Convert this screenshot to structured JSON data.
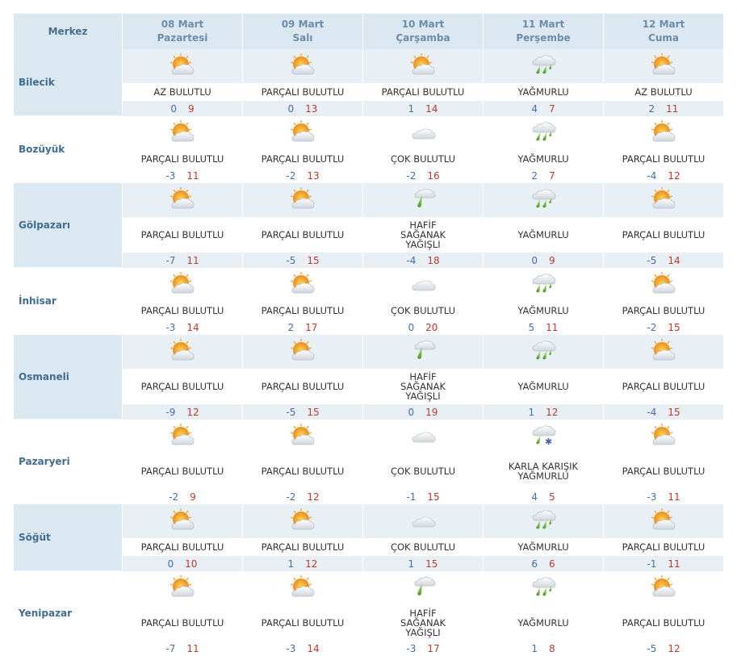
{
  "header": {
    "corner": "Merkez",
    "days": [
      {
        "date": "08 Mart",
        "weekday": "Pazartesi"
      },
      {
        "date": "09 Mart",
        "weekday": "Salı"
      },
      {
        "date": "10 Mart",
        "weekday": "Çarşamba"
      },
      {
        "date": "11 Mart",
        "weekday": "Perşembe"
      },
      {
        "date": "12 Mart",
        "weekday": "Cuma"
      }
    ]
  },
  "cities": [
    {
      "name": "Bilecik",
      "days": [
        {
          "icon": "sun-cloud-icon",
          "desc": "AZ BULUTLU",
          "min": "0",
          "max": "9"
        },
        {
          "icon": "sun-cloud-icon",
          "desc": "PARÇALI BULUTLU",
          "min": "0",
          "max": "13"
        },
        {
          "icon": "sun-cloud-icon",
          "desc": "PARÇALI BULUTLU",
          "min": "1",
          "max": "14"
        },
        {
          "icon": "rain-icon",
          "desc": "YAĞMURLU",
          "min": "4",
          "max": "7"
        },
        {
          "icon": "sun-cloud-icon",
          "desc": "AZ BULUTLU",
          "min": "2",
          "max": "11"
        }
      ]
    },
    {
      "name": "Bozüyük",
      "days": [
        {
          "icon": "sun-cloud-icon",
          "desc": "PARÇALI BULUTLU",
          "min": "-3",
          "max": "11"
        },
        {
          "icon": "sun-cloud-icon",
          "desc": "PARÇALI BULUTLU",
          "min": "-2",
          "max": "13"
        },
        {
          "icon": "cloud-icon",
          "desc": "ÇOK BULUTLU",
          "min": "-2",
          "max": "16"
        },
        {
          "icon": "rain-icon",
          "desc": "YAĞMURLU",
          "min": "2",
          "max": "7"
        },
        {
          "icon": "sun-cloud-icon",
          "desc": "PARÇALI BULUTLU",
          "min": "-4",
          "max": "12"
        }
      ]
    },
    {
      "name": "Gölpazarı",
      "days": [
        {
          "icon": "sun-cloud-icon",
          "desc": "PARÇALI BULUTLU",
          "min": "-7",
          "max": "11"
        },
        {
          "icon": "sun-cloud-icon",
          "desc": "PARÇALI BULUTLU",
          "min": "-5",
          "max": "15"
        },
        {
          "icon": "shower-icon",
          "desc": "HAFİF SAĞANAK YAĞIŞLI",
          "min": "-4",
          "max": "18"
        },
        {
          "icon": "rain-icon",
          "desc": "YAĞMURLU",
          "min": "0",
          "max": "9"
        },
        {
          "icon": "sun-cloud-icon",
          "desc": "PARÇALI BULUTLU",
          "min": "-5",
          "max": "14"
        }
      ]
    },
    {
      "name": "İnhisar",
      "days": [
        {
          "icon": "sun-cloud-icon",
          "desc": "PARÇALI BULUTLU",
          "min": "-3",
          "max": "14"
        },
        {
          "icon": "sun-cloud-icon",
          "desc": "PARÇALI BULUTLU",
          "min": "2",
          "max": "17"
        },
        {
          "icon": "cloud-icon",
          "desc": "ÇOK BULUTLU",
          "min": "0",
          "max": "20"
        },
        {
          "icon": "rain-icon",
          "desc": "YAĞMURLU",
          "min": "5",
          "max": "11"
        },
        {
          "icon": "sun-cloud-icon",
          "desc": "PARÇALI BULUTLU",
          "min": "-2",
          "max": "15"
        }
      ]
    },
    {
      "name": "Osmaneli",
      "days": [
        {
          "icon": "sun-cloud-icon",
          "desc": "PARÇALI BULUTLU",
          "min": "-9",
          "max": "12"
        },
        {
          "icon": "sun-cloud-icon",
          "desc": "PARÇALI BULUTLU",
          "min": "-5",
          "max": "15"
        },
        {
          "icon": "shower-icon",
          "desc": "HAFİF SAĞANAK YAĞIŞLI",
          "min": "0",
          "max": "19"
        },
        {
          "icon": "rain-icon",
          "desc": "YAĞMURLU",
          "min": "1",
          "max": "12"
        },
        {
          "icon": "sun-cloud-icon",
          "desc": "PARÇALI BULUTLU",
          "min": "-4",
          "max": "15"
        }
      ]
    },
    {
      "name": "Pazaryeri",
      "days": [
        {
          "icon": "sun-cloud-icon",
          "desc": "PARÇALI BULUTLU",
          "min": "-2",
          "max": "9"
        },
        {
          "icon": "sun-cloud-icon",
          "desc": "PARÇALI BULUTLU",
          "min": "-2",
          "max": "12"
        },
        {
          "icon": "cloud-icon",
          "desc": "ÇOK BULUTLU",
          "min": "-1",
          "max": "15"
        },
        {
          "icon": "sleet-icon",
          "desc": "KARLA KARIŞIK YAĞMURLU",
          "min": "4",
          "max": "5"
        },
        {
          "icon": "sun-cloud-icon",
          "desc": "PARÇALI BULUTLU",
          "min": "-3",
          "max": "11"
        }
      ]
    },
    {
      "name": "Söğüt",
      "days": [
        {
          "icon": "sun-cloud-icon",
          "desc": "PARÇALI BULUTLU",
          "min": "0",
          "max": "10"
        },
        {
          "icon": "sun-cloud-icon",
          "desc": "PARÇALI BULUTLU",
          "min": "1",
          "max": "12"
        },
        {
          "icon": "cloud-icon",
          "desc": "ÇOK BULUTLU",
          "min": "1",
          "max": "15"
        },
        {
          "icon": "rain-icon",
          "desc": "YAĞMURLU",
          "min": "6",
          "max": "6"
        },
        {
          "icon": "sun-cloud-icon",
          "desc": "PARÇALI BULUTLU",
          "min": "-1",
          "max": "11"
        }
      ]
    },
    {
      "name": "Yenipazar",
      "days": [
        {
          "icon": "sun-cloud-icon",
          "desc": "PARÇALI BULUTLU",
          "min": "-7",
          "max": "11"
        },
        {
          "icon": "sun-cloud-icon",
          "desc": "PARÇALI BULUTLU",
          "min": "-3",
          "max": "14"
        },
        {
          "icon": "shower-icon",
          "desc": "HAFİF SAĞANAK YAĞIŞLI",
          "min": "-3",
          "max": "17"
        },
        {
          "icon": "rain-icon",
          "desc": "YAĞMURLU",
          "min": "1",
          "max": "8"
        },
        {
          "icon": "sun-cloud-icon",
          "desc": "PARÇALI BULUTLU",
          "min": "-5",
          "max": "12"
        }
      ]
    }
  ]
}
